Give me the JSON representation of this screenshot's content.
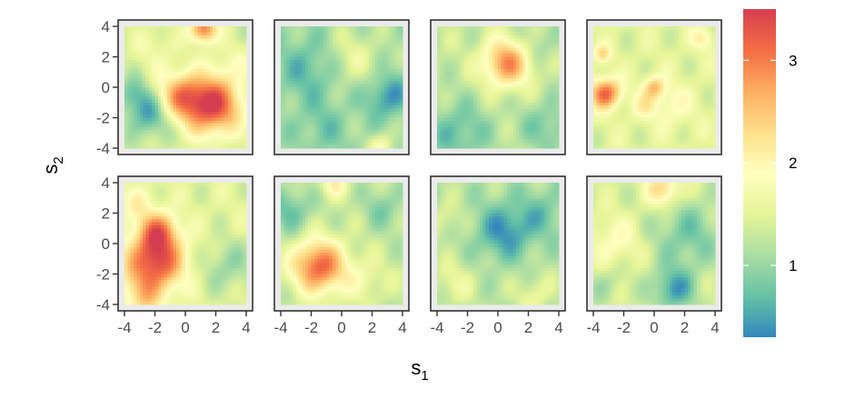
{
  "chart_data": {
    "type": "heatmap",
    "layout": {
      "rows": 2,
      "cols": 4
    },
    "xlabel": {
      "main": "s",
      "sub": "1"
    },
    "ylabel": {
      "main": "s",
      "sub": "2"
    },
    "x_range": [
      -4,
      4
    ],
    "y_range": [
      -4,
      4
    ],
    "x_ticks": [
      -4,
      -2,
      0,
      2,
      4
    ],
    "y_ticks": [
      -4,
      -2,
      0,
      2,
      4
    ],
    "x_tick_labels": [
      "-4",
      "-2",
      "0",
      "2",
      "4"
    ],
    "y_tick_labels": [
      "4",
      "2",
      "0",
      "-2",
      "-4"
    ],
    "colorbar": {
      "range": [
        0.3,
        3.5
      ],
      "ticks": [
        1,
        2,
        3
      ],
      "tick_labels": [
        "1",
        "2",
        "3"
      ],
      "colors": [
        "#3288bd",
        "#66c2a5",
        "#abdda4",
        "#e6f598",
        "#ffffbf",
        "#fee08b",
        "#fdae61",
        "#f46d43",
        "#d53e4f"
      ]
    },
    "panels": [
      {
        "base": 1.4,
        "blobs": [
          [
            1.8,
            -1.2,
            1.3,
            2.0
          ],
          [
            -0.3,
            -0.6,
            1.1,
            1.3
          ],
          [
            -2.3,
            -1.8,
            1.0,
            -0.9
          ],
          [
            -3.4,
            -0.5,
            0.8,
            -0.6
          ],
          [
            1.2,
            3.8,
            0.6,
            1.7
          ],
          [
            -2.0,
            2.6,
            1.0,
            0.3
          ],
          [
            3.0,
            1.5,
            1.0,
            0.3
          ]
        ]
      },
      {
        "base": 1.1,
        "blobs": [
          [
            -2.0,
            1.2,
            1.5,
            -0.5
          ],
          [
            3.0,
            -0.6,
            1.0,
            -0.7
          ],
          [
            -1.2,
            -2.7,
            1.2,
            -0.3
          ],
          [
            2.6,
            -3.9,
            0.6,
            0.7
          ],
          [
            0.6,
            1.9,
            1.4,
            0.5
          ]
        ]
      },
      {
        "base": 1.3,
        "blobs": [
          [
            0.6,
            1.6,
            1.1,
            1.6
          ],
          [
            -2.6,
            -3.0,
            1.5,
            -0.6
          ],
          [
            3.2,
            -2.6,
            1.2,
            -0.5
          ],
          [
            2.6,
            2.8,
            1.0,
            -0.3
          ]
        ]
      },
      {
        "base": 1.5,
        "blobs": [
          [
            -3.2,
            -0.4,
            0.7,
            1.7
          ],
          [
            -3.4,
            2.2,
            0.4,
            0.8
          ],
          [
            0.0,
            0.0,
            0.5,
            1.0
          ],
          [
            -0.6,
            -1.2,
            0.6,
            0.5
          ],
          [
            1.2,
            -1.2,
            1.0,
            0.4
          ],
          [
            3.2,
            3.2,
            0.5,
            0.6
          ]
        ]
      },
      {
        "base": 1.5,
        "blobs": [
          [
            -2.0,
            -1.2,
            1.3,
            1.9
          ],
          [
            -1.8,
            0.8,
            0.9,
            1.3
          ],
          [
            -2.8,
            -3.6,
            1.0,
            0.7
          ],
          [
            2.8,
            -1.5,
            1.2,
            -0.5
          ],
          [
            -3.2,
            2.6,
            0.8,
            0.4
          ]
        ]
      },
      {
        "base": 1.3,
        "blobs": [
          [
            -1.5,
            -1.5,
            1.2,
            1.9
          ],
          [
            -3.4,
            2.2,
            1.0,
            -0.6
          ],
          [
            2.8,
            2.3,
            1.0,
            -0.4
          ],
          [
            -0.5,
            3.9,
            0.6,
            0.7
          ],
          [
            1.4,
            -2.4,
            1.0,
            0.4
          ]
        ]
      },
      {
        "base": 1.2,
        "blobs": [
          [
            0.4,
            0.8,
            1.3,
            -0.8
          ],
          [
            3.0,
            2.0,
            1.2,
            -0.4
          ],
          [
            -2.8,
            -2.6,
            1.0,
            0.4
          ],
          [
            2.4,
            -3.4,
            0.9,
            0.4
          ],
          [
            -3.4,
            1.6,
            0.8,
            0.3
          ]
        ]
      },
      {
        "base": 1.4,
        "blobs": [
          [
            0.6,
            3.6,
            0.8,
            1.0
          ],
          [
            1.3,
            -3.0,
            1.0,
            -0.9
          ],
          [
            2.2,
            0.6,
            1.6,
            -0.6
          ],
          [
            -2.6,
            0.2,
            1.2,
            0.5
          ],
          [
            -3.2,
            -2.6,
            0.8,
            -0.3
          ]
        ]
      }
    ]
  }
}
